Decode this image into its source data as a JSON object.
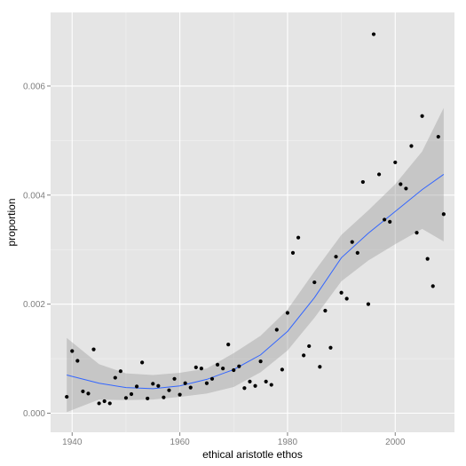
{
  "chart_data": {
    "type": "scatter",
    "xlabel": "ethical aristotle ethos",
    "ylabel": "proportion",
    "xlim": [
      1936,
      2011
    ],
    "ylim": [
      -0.00035,
      0.00735
    ],
    "xticks": [
      1940,
      1960,
      1980,
      2000
    ],
    "xtick_labels": [
      "1940",
      "1960",
      "1980",
      "2000"
    ],
    "yticks": [
      0.0,
      0.002,
      0.004,
      0.006
    ],
    "ytick_labels": [
      "0.000",
      "0.002",
      "0.004",
      "0.006"
    ],
    "grid": true,
    "legend": "none",
    "colors": {
      "panel_background": "#e5e5e5",
      "grid_major": "#ffffff",
      "grid_minor": "#f2f2f2",
      "points": "#000000",
      "smooth_line": "#3366ff",
      "confidence_band": "#999999"
    },
    "points": [
      {
        "x": 1939,
        "y": 0.0003
      },
      {
        "x": 1940,
        "y": 0.00114
      },
      {
        "x": 1941,
        "y": 0.00096
      },
      {
        "x": 1942,
        "y": 0.0004
      },
      {
        "x": 1943,
        "y": 0.00036
      },
      {
        "x": 1944,
        "y": 0.00117
      },
      {
        "x": 1945,
        "y": 0.00018
      },
      {
        "x": 1946,
        "y": 0.00022
      },
      {
        "x": 1947,
        "y": 0.00018
      },
      {
        "x": 1948,
        "y": 0.00065
      },
      {
        "x": 1949,
        "y": 0.00077
      },
      {
        "x": 1950,
        "y": 0.00028
      },
      {
        "x": 1951,
        "y": 0.00035
      },
      {
        "x": 1952,
        "y": 0.00049
      },
      {
        "x": 1953,
        "y": 0.00093
      },
      {
        "x": 1954,
        "y": 0.00027
      },
      {
        "x": 1955,
        "y": 0.00054
      },
      {
        "x": 1956,
        "y": 0.0005
      },
      {
        "x": 1957,
        "y": 0.00029
      },
      {
        "x": 1958,
        "y": 0.00042
      },
      {
        "x": 1959,
        "y": 0.00063
      },
      {
        "x": 1960,
        "y": 0.00034
      },
      {
        "x": 1961,
        "y": 0.00055
      },
      {
        "x": 1962,
        "y": 0.00047
      },
      {
        "x": 1963,
        "y": 0.00084
      },
      {
        "x": 1964,
        "y": 0.00082
      },
      {
        "x": 1965,
        "y": 0.00055
      },
      {
        "x": 1966,
        "y": 0.00063
      },
      {
        "x": 1967,
        "y": 0.00089
      },
      {
        "x": 1968,
        "y": 0.00082
      },
      {
        "x": 1969,
        "y": 0.00126
      },
      {
        "x": 1970,
        "y": 0.00079
      },
      {
        "x": 1971,
        "y": 0.00086
      },
      {
        "x": 1972,
        "y": 0.00046
      },
      {
        "x": 1973,
        "y": 0.00058
      },
      {
        "x": 1974,
        "y": 0.0005
      },
      {
        "x": 1975,
        "y": 0.00095
      },
      {
        "x": 1976,
        "y": 0.00058
      },
      {
        "x": 1977,
        "y": 0.00052
      },
      {
        "x": 1978,
        "y": 0.00153
      },
      {
        "x": 1979,
        "y": 0.0008
      },
      {
        "x": 1980,
        "y": 0.00184
      },
      {
        "x": 1981,
        "y": 0.00294
      },
      {
        "x": 1982,
        "y": 0.00322
      },
      {
        "x": 1983,
        "y": 0.00106
      },
      {
        "x": 1984,
        "y": 0.00123
      },
      {
        "x": 1985,
        "y": 0.0024
      },
      {
        "x": 1986,
        "y": 0.00085
      },
      {
        "x": 1987,
        "y": 0.00188
      },
      {
        "x": 1988,
        "y": 0.0012
      },
      {
        "x": 1989,
        "y": 0.00287
      },
      {
        "x": 1990,
        "y": 0.00221
      },
      {
        "x": 1991,
        "y": 0.0021
      },
      {
        "x": 1992,
        "y": 0.00314
      },
      {
        "x": 1993,
        "y": 0.00294
      },
      {
        "x": 1994,
        "y": 0.00424
      },
      {
        "x": 1995,
        "y": 0.002
      },
      {
        "x": 1996,
        "y": 0.00695
      },
      {
        "x": 1997,
        "y": 0.00438
      },
      {
        "x": 1998,
        "y": 0.00355
      },
      {
        "x": 1999,
        "y": 0.00351
      },
      {
        "x": 2000,
        "y": 0.0046
      },
      {
        "x": 2001,
        "y": 0.0042
      },
      {
        "x": 2002,
        "y": 0.00412
      },
      {
        "x": 2003,
        "y": 0.0049
      },
      {
        "x": 2004,
        "y": 0.00331
      },
      {
        "x": 2005,
        "y": 0.00545
      },
      {
        "x": 2006,
        "y": 0.00283
      },
      {
        "x": 2007,
        "y": 0.00233
      },
      {
        "x": 2008,
        "y": 0.00507
      },
      {
        "x": 2009,
        "y": 0.00365
      }
    ],
    "smooth": {
      "x": [
        1939,
        1945,
        1950,
        1955,
        1960,
        1965,
        1970,
        1975,
        1980,
        1985,
        1990,
        1995,
        2000,
        2005,
        2009
      ],
      "y": [
        0.0007,
        0.00055,
        0.00047,
        0.00045,
        0.0005,
        0.00062,
        0.0008,
        0.00107,
        0.0015,
        0.00212,
        0.00285,
        0.0033,
        0.0037,
        0.0041,
        0.00438
      ],
      "lower": [
        2e-05,
        0.00025,
        0.00024,
        0.00025,
        0.0003,
        0.00036,
        0.00048,
        0.00075,
        0.00115,
        0.00175,
        0.00242,
        0.0028,
        0.0031,
        0.00338,
        0.00315
      ],
      "upper": [
        0.00138,
        0.0009,
        0.00073,
        0.0007,
        0.00074,
        0.00082,
        0.0011,
        0.00142,
        0.0019,
        0.0026,
        0.00327,
        0.00372,
        0.0042,
        0.0048,
        0.0056
      ]
    }
  }
}
